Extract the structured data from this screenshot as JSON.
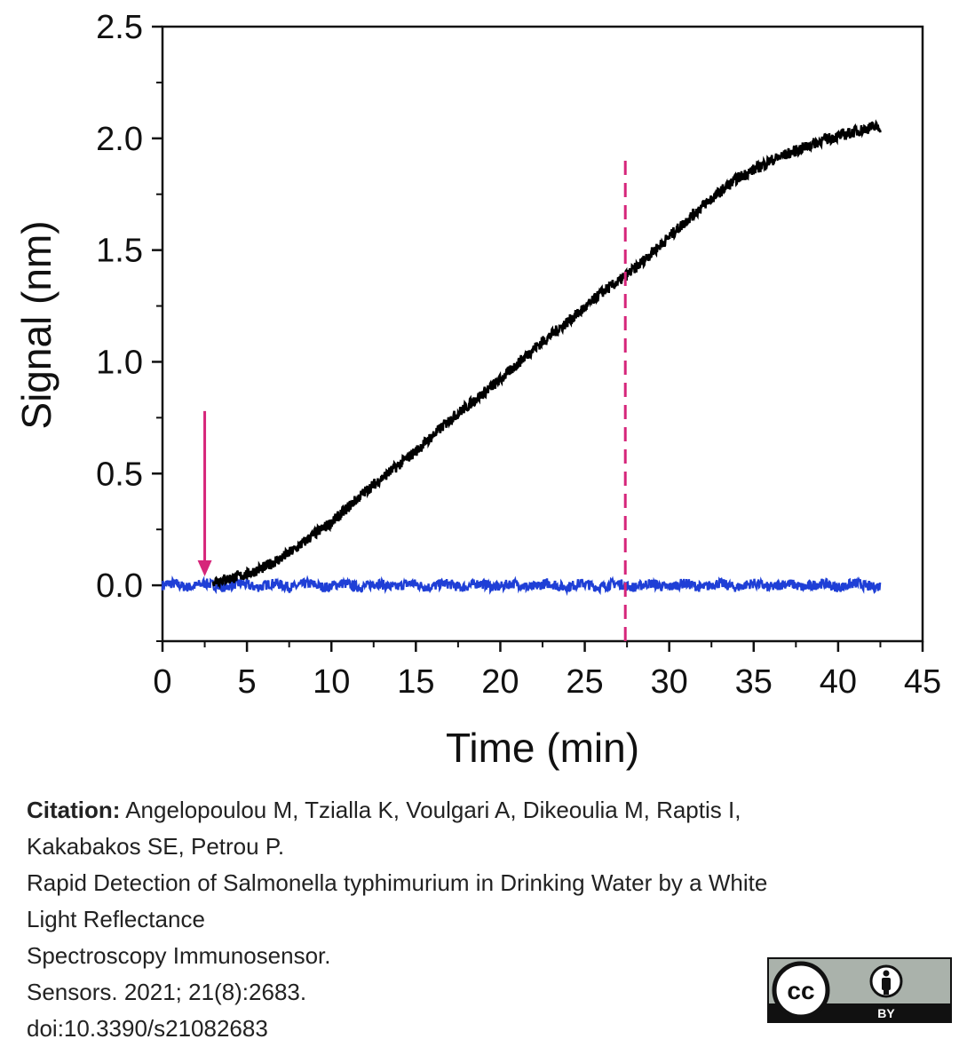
{
  "chart_data": {
    "type": "line",
    "xlabel": "Time (min)",
    "ylabel": "Signal (nm)",
    "xlim": [
      0,
      45
    ],
    "ylim": [
      -0.25,
      2.5
    ],
    "x_ticks": [
      "0",
      "5",
      "10",
      "15",
      "20",
      "25",
      "30",
      "35",
      "40",
      "45"
    ],
    "y_ticks": [
      "0.0",
      "0.5",
      "1.0",
      "1.5",
      "2.0",
      "2.5"
    ],
    "grid": false,
    "colors": {
      "black_series": "#000000",
      "blue_series": "#1f3fd6",
      "marker": "#d6257a"
    },
    "series": [
      {
        "color": "#000000",
        "x": [
          3.0,
          4,
          5,
          6,
          7,
          8,
          9,
          10,
          11,
          12,
          13,
          14,
          15,
          16,
          17,
          18,
          19,
          20,
          21,
          22,
          23,
          24,
          25,
          26,
          27,
          28,
          29,
          30,
          31,
          32,
          33,
          34,
          35,
          36,
          37,
          38,
          39,
          40,
          41,
          42,
          42.5
        ],
        "y": [
          0.02,
          0.03,
          0.05,
          0.08,
          0.12,
          0.17,
          0.23,
          0.28,
          0.35,
          0.42,
          0.48,
          0.54,
          0.6,
          0.67,
          0.74,
          0.8,
          0.86,
          0.92,
          0.99,
          1.06,
          1.12,
          1.18,
          1.24,
          1.31,
          1.36,
          1.42,
          1.49,
          1.56,
          1.63,
          1.7,
          1.76,
          1.82,
          1.86,
          1.9,
          1.93,
          1.96,
          1.99,
          2.01,
          2.03,
          2.05,
          2.05
        ]
      },
      {
        "color": "#1f3fd6",
        "x": [
          0,
          42.5
        ],
        "y": [
          0.0,
          0.0
        ]
      }
    ],
    "annotations": [
      {
        "type": "arrow",
        "color": "#d6257a",
        "x": 2.5,
        "y_from": 0.78,
        "y_to": 0.04
      },
      {
        "type": "dashed_vline",
        "color": "#d6257a",
        "x": 27.4,
        "y_from": -0.25,
        "y_to": 1.9
      }
    ]
  },
  "citation": {
    "label": "Citation:",
    "line1": "Angelopoulou M, Tzialla K, Voulgari A, Dikeoulia M, Raptis I,",
    "line2": "Kakabakos SE, Petrou P.",
    "line3": "Rapid Detection of Salmonella typhimurium in Drinking Water by a White",
    "line4": "Light Reflectance",
    "line5": "Spectroscopy Immunosensor.",
    "line6": "Sensors. 2021; 21(8):2683.",
    "line7": "doi:10.3390/s21082683"
  },
  "license_badge": {
    "cc_text": "cc",
    "by_text": "BY",
    "icon": "creative-commons-by-icon"
  }
}
